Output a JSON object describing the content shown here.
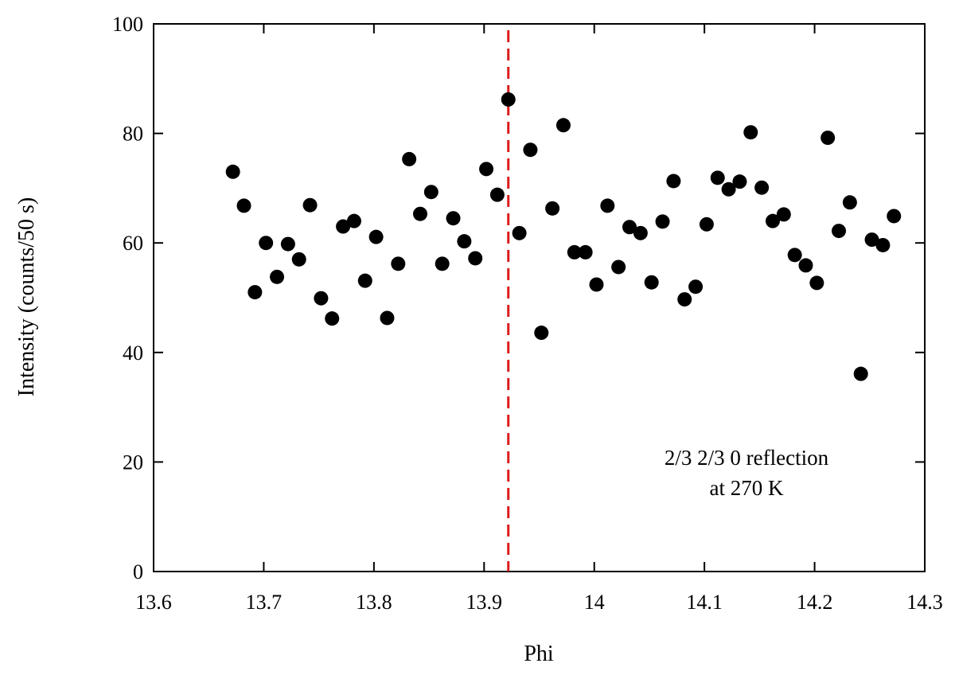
{
  "chart_data": {
    "type": "scatter",
    "title": "",
    "xlabel": "Phi",
    "ylabel": "Intensity (counts/50 s)",
    "xlim": [
      13.6,
      14.3
    ],
    "ylim": [
      0,
      100
    ],
    "x_ticks": [
      "13.6",
      "13.7",
      "13.8",
      "13.9",
      "14",
      "14.1",
      "14.2",
      "14.3"
    ],
    "y_ticks": [
      "0",
      "20",
      "40",
      "60",
      "80",
      "100"
    ],
    "grid": false,
    "marker_color": "#000000",
    "reference_line": {
      "x": 13.922,
      "color": "#dd1c1c",
      "style": "dashed"
    },
    "annotation": [
      "2/3 2/3 0 reflection",
      "at 270 K"
    ],
    "series": [
      {
        "x": [
          13.672,
          13.682,
          13.692,
          13.702,
          13.712,
          13.722,
          13.732,
          13.742,
          13.752,
          13.762,
          13.772,
          13.782,
          13.792,
          13.802,
          13.812,
          13.822,
          13.832,
          13.842,
          13.852,
          13.862,
          13.872,
          13.882,
          13.892,
          13.902,
          13.912,
          13.922,
          13.932,
          13.942,
          13.952,
          13.962,
          13.972,
          13.982,
          13.992,
          14.002,
          14.012,
          14.022,
          14.032,
          14.042,
          14.052,
          14.062,
          14.072,
          14.082,
          14.092,
          14.102,
          14.112,
          14.122,
          14.132,
          14.142,
          14.152,
          14.162,
          14.172,
          14.182,
          14.192,
          14.202,
          14.212,
          14.222,
          14.232,
          14.242,
          14.252,
          14.262,
          14.272
        ],
        "y": [
          73.0,
          66.8,
          51.0,
          60.0,
          53.8,
          59.8,
          57.0,
          66.9,
          49.9,
          46.2,
          63.0,
          64.0,
          53.1,
          61.1,
          46.3,
          56.2,
          75.3,
          65.3,
          69.3,
          56.2,
          64.5,
          60.3,
          57.2,
          73.5,
          68.8,
          86.2,
          61.8,
          77.0,
          43.6,
          66.3,
          81.5,
          58.3,
          58.3,
          52.4,
          66.8,
          55.6,
          62.9,
          61.8,
          52.8,
          63.9,
          71.3,
          49.7,
          52.0,
          63.4,
          71.9,
          69.8,
          71.2,
          80.2,
          70.1,
          64.0,
          65.2,
          57.8,
          55.9,
          52.7,
          79.2,
          62.2,
          67.4,
          36.1,
          60.6,
          59.6,
          64.9
        ]
      }
    ]
  }
}
